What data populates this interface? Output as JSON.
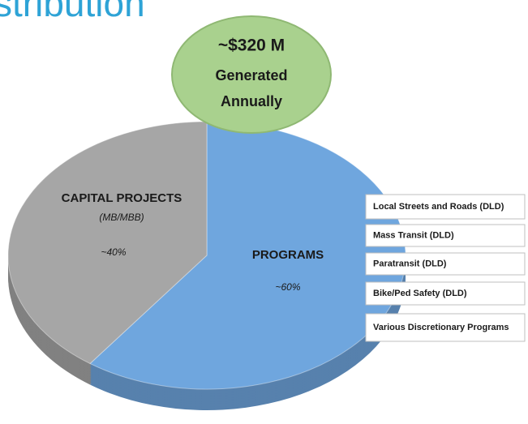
{
  "chart_data": {
    "type": "pie",
    "title": "stribution",
    "categories": [
      "CAPITAL PROJECTS",
      "PROGRAMS"
    ],
    "category_notes": {
      "0": "(MB/MBB)"
    },
    "values": [
      40,
      60
    ],
    "value_labels": [
      "~40%",
      "~60%"
    ],
    "colors": [
      "#a6a6a6",
      "#6fa6de"
    ],
    "callout": [
      "~$320 M",
      "Generated",
      "Annually"
    ],
    "program_list": [
      "Local Streets and Roads (DLD)",
      "Mass Transit (DLD)",
      "Paratransit (DLD)",
      "Bike/Ped Safety (DLD)",
      "Various Discretionary Programs"
    ]
  }
}
